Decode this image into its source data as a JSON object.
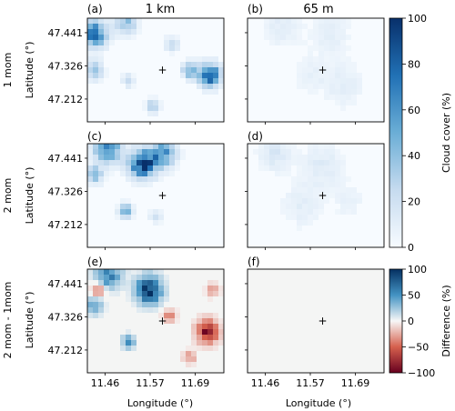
{
  "chart_data": {
    "type": "heatmap",
    "columns": [
      "1 km",
      "65 m"
    ],
    "rows": [
      "1 mom",
      "2 mom",
      "2 mom - 1mom"
    ],
    "panel_labels": [
      "(a)",
      "(b)",
      "(c)",
      "(d)",
      "(e)",
      "(f)"
    ],
    "xlabel": "Longitude (°)",
    "ylabel": "Latitude (°)",
    "xticks": [
      "11.46",
      "11.57",
      "11.69"
    ],
    "yticks": [
      "47.441",
      "47.326",
      "47.212"
    ],
    "marker": "+",
    "colorbar_cloud": {
      "label": "Cloud cover (%)",
      "range": [
        0,
        100
      ],
      "ticks": [
        "0",
        "20",
        "40",
        "60",
        "80",
        "100"
      ],
      "colormap": "Blues"
    },
    "colorbar_diff": {
      "label": "Difference (%)",
      "range": [
        -100,
        100
      ],
      "ticks": [
        "−100",
        "−50",
        "0",
        "50",
        "100"
      ],
      "colormap": "RdBu"
    }
  }
}
